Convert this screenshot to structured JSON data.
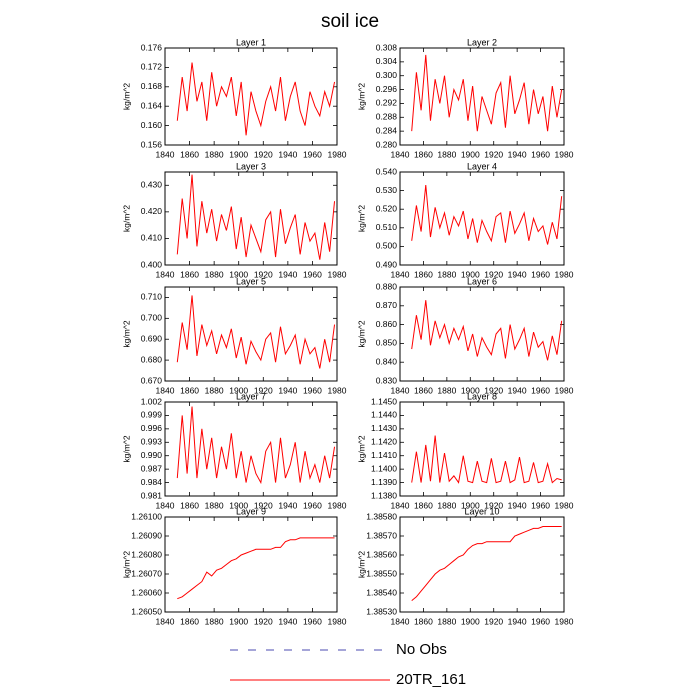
{
  "title": "soil ice",
  "legend": [
    {
      "name": "No Obs",
      "color": "#4b4bb0",
      "dashed": true
    },
    {
      "name": "20TR_161",
      "color": "#ff0000",
      "dashed": false
    }
  ],
  "chart_data": [
    {
      "type": "line",
      "title": "Layer 1",
      "ylabel": "kg/m^2",
      "color": "#ff0000",
      "x": [
        1850,
        1854,
        1858,
        1862,
        1866,
        1870,
        1874,
        1878,
        1882,
        1886,
        1890,
        1894,
        1898,
        1902,
        1906,
        1910,
        1914,
        1918,
        1922,
        1926,
        1930,
        1934,
        1938,
        1942,
        1946,
        1950,
        1954,
        1958,
        1962,
        1966,
        1970,
        1974,
        1978
      ],
      "values": [
        0.161,
        0.17,
        0.163,
        0.173,
        0.165,
        0.169,
        0.161,
        0.171,
        0.164,
        0.168,
        0.166,
        0.17,
        0.162,
        0.169,
        0.158,
        0.167,
        0.163,
        0.16,
        0.165,
        0.168,
        0.163,
        0.17,
        0.161,
        0.166,
        0.169,
        0.163,
        0.16,
        0.167,
        0.164,
        0.162,
        0.167,
        0.164,
        0.169
      ],
      "xlim": [
        1840,
        1980
      ],
      "xticks": [
        1840,
        1860,
        1880,
        1900,
        1920,
        1940,
        1960,
        1980
      ],
      "ylim": [
        0.156,
        0.176
      ],
      "yticks": [
        0.156,
        {
          "value": 0.16,
          "label": "0.160"
        },
        0.164,
        0.168,
        0.172,
        0.176
      ]
    },
    {
      "type": "line",
      "title": "Layer 2",
      "ylabel": "kg/m^2",
      "color": "#ff0000",
      "x": [
        1850,
        1854,
        1858,
        1862,
        1866,
        1870,
        1874,
        1878,
        1882,
        1886,
        1890,
        1894,
        1898,
        1902,
        1906,
        1910,
        1914,
        1918,
        1922,
        1926,
        1930,
        1934,
        1938,
        1942,
        1946,
        1950,
        1954,
        1958,
        1962,
        1966,
        1970,
        1974,
        1978
      ],
      "values": [
        0.284,
        0.301,
        0.29,
        0.306,
        0.287,
        0.299,
        0.292,
        0.3,
        0.288,
        0.296,
        0.293,
        0.299,
        0.287,
        0.297,
        0.284,
        0.294,
        0.29,
        0.286,
        0.295,
        0.298,
        0.285,
        0.3,
        0.289,
        0.293,
        0.298,
        0.286,
        0.296,
        0.289,
        0.294,
        0.284,
        0.297,
        0.288,
        0.296
      ],
      "xlim": [
        1840,
        1980
      ],
      "xticks": [
        1840,
        1860,
        1880,
        1900,
        1920,
        1940,
        1960,
        1980
      ],
      "ylim": [
        0.28,
        0.308
      ],
      "yticks": [
        {
          "value": 0.28,
          "label": "0.280"
        },
        0.284,
        0.288,
        0.292,
        0.296,
        {
          "value": 0.3,
          "label": "0.300"
        },
        0.304,
        0.308
      ]
    },
    {
      "type": "line",
      "title": "Layer 3",
      "ylabel": "kg/m^2",
      "color": "#ff0000",
      "x": [
        1850,
        1854,
        1858,
        1862,
        1866,
        1870,
        1874,
        1878,
        1882,
        1886,
        1890,
        1894,
        1898,
        1902,
        1906,
        1910,
        1914,
        1918,
        1922,
        1926,
        1930,
        1934,
        1938,
        1942,
        1946,
        1950,
        1954,
        1958,
        1962,
        1966,
        1970,
        1974,
        1978
      ],
      "values": [
        0.404,
        0.425,
        0.41,
        0.434,
        0.407,
        0.424,
        0.412,
        0.421,
        0.409,
        0.419,
        0.413,
        0.422,
        0.406,
        0.418,
        0.403,
        0.415,
        0.41,
        0.405,
        0.417,
        0.42,
        0.403,
        0.421,
        0.408,
        0.414,
        0.419,
        0.404,
        0.416,
        0.409,
        0.412,
        0.402,
        0.416,
        0.405,
        0.424
      ],
      "xlim": [
        1840,
        1980
      ],
      "xticks": [
        1840,
        1860,
        1880,
        1900,
        1920,
        1940,
        1960,
        1980
      ],
      "ylim": [
        0.4,
        0.435
      ],
      "yticks": [
        {
          "value": 0.4,
          "label": "0.400"
        },
        {
          "value": 0.41,
          "label": "0.410"
        },
        {
          "value": 0.42,
          "label": "0.420"
        },
        {
          "value": 0.43,
          "label": "0.430"
        }
      ]
    },
    {
      "type": "line",
      "title": "Layer 4",
      "ylabel": "kg/m^2",
      "color": "#ff0000",
      "x": [
        1850,
        1854,
        1858,
        1862,
        1866,
        1870,
        1874,
        1878,
        1882,
        1886,
        1890,
        1894,
        1898,
        1902,
        1906,
        1910,
        1914,
        1918,
        1922,
        1926,
        1930,
        1934,
        1938,
        1942,
        1946,
        1950,
        1954,
        1958,
        1962,
        1966,
        1970,
        1974,
        1978
      ],
      "values": [
        0.503,
        0.522,
        0.508,
        0.533,
        0.505,
        0.521,
        0.51,
        0.518,
        0.506,
        0.516,
        0.511,
        0.519,
        0.504,
        0.515,
        0.502,
        0.514,
        0.508,
        0.503,
        0.516,
        0.518,
        0.502,
        0.519,
        0.507,
        0.512,
        0.518,
        0.503,
        0.515,
        0.508,
        0.511,
        0.501,
        0.513,
        0.504,
        0.527
      ],
      "xlim": [
        1840,
        1980
      ],
      "xticks": [
        1840,
        1860,
        1880,
        1900,
        1920,
        1940,
        1960,
        1980
      ],
      "ylim": [
        0.49,
        0.54
      ],
      "yticks": [
        {
          "value": 0.49,
          "label": "0.490"
        },
        {
          "value": 0.5,
          "label": "0.500"
        },
        {
          "value": 0.51,
          "label": "0.510"
        },
        {
          "value": 0.52,
          "label": "0.520"
        },
        {
          "value": 0.53,
          "label": "0.530"
        },
        {
          "value": 0.54,
          "label": "0.540"
        }
      ]
    },
    {
      "type": "line",
      "title": "Layer 5",
      "ylabel": "kg/m^2",
      "color": "#ff0000",
      "x": [
        1850,
        1854,
        1858,
        1862,
        1866,
        1870,
        1874,
        1878,
        1882,
        1886,
        1890,
        1894,
        1898,
        1902,
        1906,
        1910,
        1914,
        1918,
        1922,
        1926,
        1930,
        1934,
        1938,
        1942,
        1946,
        1950,
        1954,
        1958,
        1962,
        1966,
        1970,
        1974,
        1978
      ],
      "values": [
        0.679,
        0.698,
        0.685,
        0.711,
        0.682,
        0.697,
        0.687,
        0.694,
        0.683,
        0.692,
        0.686,
        0.695,
        0.681,
        0.691,
        0.678,
        0.689,
        0.684,
        0.68,
        0.69,
        0.693,
        0.679,
        0.696,
        0.683,
        0.687,
        0.692,
        0.678,
        0.69,
        0.683,
        0.686,
        0.676,
        0.69,
        0.679,
        0.697
      ],
      "xlim": [
        1840,
        1980
      ],
      "xticks": [
        1840,
        1860,
        1880,
        1900,
        1920,
        1940,
        1960,
        1980
      ],
      "ylim": [
        0.67,
        0.715
      ],
      "yticks": [
        {
          "value": 0.67,
          "label": "0.670"
        },
        {
          "value": 0.68,
          "label": "0.680"
        },
        {
          "value": 0.69,
          "label": "0.690"
        },
        {
          "value": 0.7,
          "label": "0.700"
        },
        {
          "value": 0.71,
          "label": "0.710"
        }
      ]
    },
    {
      "type": "line",
      "title": "Layer 6",
      "ylabel": "kg/m^2",
      "color": "#ff0000",
      "x": [
        1850,
        1854,
        1858,
        1862,
        1866,
        1870,
        1874,
        1878,
        1882,
        1886,
        1890,
        1894,
        1898,
        1902,
        1906,
        1910,
        1914,
        1918,
        1922,
        1926,
        1930,
        1934,
        1938,
        1942,
        1946,
        1950,
        1954,
        1958,
        1962,
        1966,
        1970,
        1974,
        1978
      ],
      "values": [
        0.847,
        0.865,
        0.852,
        0.873,
        0.849,
        0.862,
        0.853,
        0.86,
        0.85,
        0.858,
        0.852,
        0.859,
        0.846,
        0.855,
        0.843,
        0.853,
        0.848,
        0.844,
        0.855,
        0.858,
        0.842,
        0.86,
        0.847,
        0.852,
        0.858,
        0.843,
        0.856,
        0.848,
        0.851,
        0.841,
        0.854,
        0.844,
        0.862
      ],
      "xlim": [
        1840,
        1980
      ],
      "xticks": [
        1840,
        1860,
        1880,
        1900,
        1920,
        1940,
        1960,
        1980
      ],
      "ylim": [
        0.83,
        0.88
      ],
      "yticks": [
        {
          "value": 0.83,
          "label": "0.830"
        },
        {
          "value": 0.84,
          "label": "0.840"
        },
        {
          "value": 0.85,
          "label": "0.850"
        },
        {
          "value": 0.86,
          "label": "0.860"
        },
        {
          "value": 0.87,
          "label": "0.870"
        },
        {
          "value": 0.88,
          "label": "0.880"
        }
      ]
    },
    {
      "type": "line",
      "title": "Layer 7",
      "ylabel": "kg/m^2",
      "color": "#ff0000",
      "x": [
        1850,
        1854,
        1858,
        1862,
        1866,
        1870,
        1874,
        1878,
        1882,
        1886,
        1890,
        1894,
        1898,
        1902,
        1906,
        1910,
        1914,
        1918,
        1922,
        1926,
        1930,
        1934,
        1938,
        1942,
        1946,
        1950,
        1954,
        1958,
        1962,
        1966,
        1970,
        1974,
        1978
      ],
      "values": [
        0.985,
        0.999,
        0.986,
        1.001,
        0.985,
        0.996,
        0.987,
        0.994,
        0.985,
        0.992,
        0.987,
        0.995,
        0.985,
        0.991,
        0.984,
        0.99,
        0.986,
        0.984,
        0.991,
        0.993,
        0.984,
        0.994,
        0.985,
        0.988,
        0.993,
        0.984,
        0.991,
        0.985,
        0.988,
        0.984,
        0.99,
        0.985,
        0.992
      ],
      "xlim": [
        1840,
        1980
      ],
      "xticks": [
        1840,
        1860,
        1880,
        1900,
        1920,
        1940,
        1960,
        1980
      ],
      "ylim": [
        0.981,
        1.002
      ],
      "yticks": [
        0.981,
        0.984,
        0.987,
        {
          "value": 0.99,
          "label": "0.990"
        },
        0.993,
        0.996,
        0.999,
        1.002
      ]
    },
    {
      "type": "line",
      "title": "Layer 8",
      "ylabel": "kg/m^2",
      "color": "#ff0000",
      "x": [
        1850,
        1854,
        1858,
        1862,
        1866,
        1870,
        1874,
        1878,
        1882,
        1886,
        1890,
        1894,
        1898,
        1902,
        1906,
        1910,
        1914,
        1918,
        1922,
        1926,
        1930,
        1934,
        1938,
        1942,
        1946,
        1950,
        1954,
        1958,
        1962,
        1966,
        1970,
        1974,
        1978
      ],
      "values": [
        1.139,
        1.1413,
        1.139,
        1.1418,
        1.1391,
        1.1425,
        1.139,
        1.1412,
        1.1391,
        1.1395,
        1.139,
        1.141,
        1.1391,
        1.139,
        1.1406,
        1.1391,
        1.139,
        1.1408,
        1.139,
        1.1391,
        1.1406,
        1.139,
        1.1392,
        1.1409,
        1.139,
        1.1391,
        1.1405,
        1.139,
        1.1391,
        1.1404,
        1.139,
        1.1393,
        1.1392
      ],
      "xlim": [
        1840,
        1980
      ],
      "xticks": [
        1840,
        1860,
        1880,
        1900,
        1920,
        1940,
        1960,
        1980
      ],
      "ylim": [
        1.138,
        1.145
      ],
      "yticks": [
        {
          "value": 1.138,
          "label": "1.1380"
        },
        {
          "value": 1.139,
          "label": "1.1390"
        },
        {
          "value": 1.14,
          "label": "1.1400"
        },
        {
          "value": 1.141,
          "label": "1.1410"
        },
        {
          "value": 1.142,
          "label": "1.1420"
        },
        {
          "value": 1.143,
          "label": "1.1430"
        },
        {
          "value": 1.144,
          "label": "1.1440"
        },
        {
          "value": 1.145,
          "label": "1.1450"
        }
      ]
    },
    {
      "type": "line",
      "title": "Layer 9",
      "ylabel": "kg/m^2",
      "color": "#ff0000",
      "x": [
        1850,
        1854,
        1858,
        1862,
        1866,
        1870,
        1874,
        1878,
        1882,
        1886,
        1890,
        1894,
        1898,
        1902,
        1906,
        1910,
        1914,
        1918,
        1922,
        1926,
        1930,
        1934,
        1938,
        1942,
        1946,
        1950,
        1954,
        1958,
        1962,
        1966,
        1970,
        1974,
        1978
      ],
      "values": [
        1.26057,
        1.26058,
        1.2606,
        1.26062,
        1.26064,
        1.26066,
        1.26071,
        1.26069,
        1.26072,
        1.26073,
        1.26075,
        1.26077,
        1.26078,
        1.2608,
        1.26081,
        1.26082,
        1.26083,
        1.26083,
        1.26083,
        1.26083,
        1.26084,
        1.26084,
        1.26087,
        1.26088,
        1.26088,
        1.26089,
        1.26089,
        1.26089,
        1.26089,
        1.26089,
        1.26089,
        1.26089,
        1.26089
      ],
      "xlim": [
        1840,
        1980
      ],
      "xticks": [
        1840,
        1860,
        1880,
        1900,
        1920,
        1940,
        1960,
        1980
      ],
      "ylim": [
        1.2605,
        1.261
      ],
      "yticks": [
        {
          "value": 1.2605,
          "label": "1.26050"
        },
        {
          "value": 1.2606,
          "label": "1.26060"
        },
        {
          "value": 1.2607,
          "label": "1.26070"
        },
        {
          "value": 1.2608,
          "label": "1.26080"
        },
        {
          "value": 1.2609,
          "label": "1.26090"
        },
        {
          "value": 1.261,
          "label": "1.26100"
        }
      ]
    },
    {
      "type": "line",
      "title": "Layer 10",
      "ylabel": "kg/m^2",
      "color": "#ff0000",
      "x": [
        1850,
        1854,
        1858,
        1862,
        1866,
        1870,
        1874,
        1878,
        1882,
        1886,
        1890,
        1894,
        1898,
        1902,
        1906,
        1910,
        1914,
        1918,
        1922,
        1926,
        1930,
        1934,
        1938,
        1942,
        1946,
        1950,
        1954,
        1958,
        1962,
        1966,
        1970,
        1974,
        1978
      ],
      "values": [
        1.38536,
        1.38538,
        1.38541,
        1.38544,
        1.38547,
        1.3855,
        1.38552,
        1.38553,
        1.38555,
        1.38557,
        1.38559,
        1.3856,
        1.38563,
        1.38565,
        1.38566,
        1.38566,
        1.38567,
        1.38567,
        1.38567,
        1.38567,
        1.38567,
        1.38567,
        1.3857,
        1.38571,
        1.38572,
        1.38573,
        1.38574,
        1.38574,
        1.38575,
        1.38575,
        1.38575,
        1.38575,
        1.38575
      ],
      "xlim": [
        1840,
        1980
      ],
      "xticks": [
        1840,
        1860,
        1880,
        1900,
        1920,
        1940,
        1960,
        1980
      ],
      "ylim": [
        1.3853,
        1.3858
      ],
      "yticks": [
        {
          "value": 1.3853,
          "label": "1.38530"
        },
        {
          "value": 1.3854,
          "label": "1.38540"
        },
        {
          "value": 1.3855,
          "label": "1.38550"
        },
        {
          "value": 1.3856,
          "label": "1.38560"
        },
        {
          "value": 1.3857,
          "label": "1.38570"
        },
        {
          "value": 1.3858,
          "label": "1.38580"
        }
      ]
    }
  ]
}
